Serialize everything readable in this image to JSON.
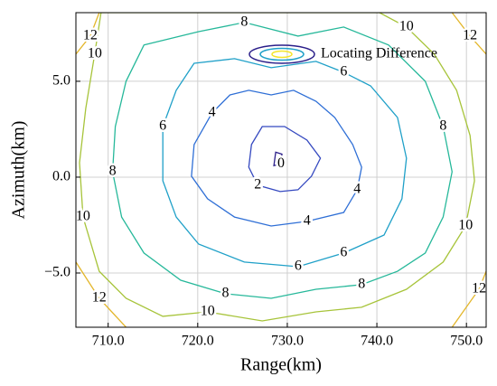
{
  "chart_data": {
    "type": "contour",
    "xlabel": "Range(km)",
    "ylabel": "Azimuth(km)",
    "legend_label": "Locating Difference",
    "xlim": [
      706.4,
      752.2
    ],
    "ylim": [
      -7.83,
      8.58
    ],
    "xticks": [
      {
        "value": 710,
        "label": "710.0"
      },
      {
        "value": 720,
        "label": "720.0"
      },
      {
        "value": 730,
        "label": "730.0"
      },
      {
        "value": 740,
        "label": "740.0"
      },
      {
        "value": 750,
        "label": "750.0"
      }
    ],
    "yticks": [
      {
        "value": -5,
        "label": "−5.0"
      },
      {
        "value": 0,
        "label": "0.0"
      },
      {
        "value": 5,
        "label": "5.0"
      }
    ],
    "grid": true,
    "contours": [
      {
        "level": 0,
        "color": "#2b1f8a",
        "x": [
          728.5,
          729.3,
          729.4,
          728.7
        ],
        "y": [
          0.6,
          0.7,
          1.2,
          1.3
        ]
      },
      {
        "level": 2,
        "color": "#3549c0",
        "x": [
          727.2,
          729.7,
          732.2,
          733.7,
          732.7,
          731.2,
          729.2,
          726.7,
          725.7,
          726.0
        ],
        "y": [
          2.64,
          2.64,
          1.93,
          0.99,
          0.05,
          -0.66,
          -0.75,
          -0.42,
          0.52,
          1.7
        ]
      },
      {
        "level": 4,
        "color": "#2f6fd6",
        "x": [
          723.6,
          725.7,
          728.2,
          730.7,
          733.2,
          735.3,
          737.3,
          738.3,
          737.8,
          736.3,
          732.2,
          728.2,
          724.1,
          721.1,
          719.3,
          719.6,
          721.6
        ],
        "y": [
          4.29,
          4.53,
          4.29,
          4.53,
          3.96,
          3.11,
          1.7,
          0.52,
          -0.66,
          -1.84,
          -2.31,
          -2.55,
          -2.08,
          -1.13,
          0.05,
          1.7,
          3.35
        ]
      },
      {
        "level": 6,
        "color": "#1fa0c8",
        "x": [
          719.6,
          724.1,
          728.2,
          733.2,
          736.3,
          739.3,
          742.3,
          743.3,
          742.8,
          740.8,
          736.3,
          731.2,
          725.2,
          720.1,
          717.6,
          716.1,
          716.1,
          717.6
        ],
        "y": [
          5.94,
          6.18,
          5.71,
          6.04,
          5.47,
          4.76,
          3.11,
          0.99,
          -1.13,
          -3.02,
          -3.96,
          -4.67,
          -4.43,
          -3.49,
          -2.08,
          -0.19,
          2.64,
          4.53
        ]
      },
      {
        "level": 8,
        "color": "#26b89a",
        "x": [
          714.0,
          720.1,
          725.2,
          731.2,
          736.3,
          741.3,
          745.4,
          747.4,
          748.4,
          747.4,
          745.4,
          742.3,
          738.3,
          733.2,
          728.2,
          723.1,
          718.1,
          714.0,
          711.5,
          710.5,
          710.8,
          712.0
        ],
        "y": [
          6.89,
          7.59,
          8.07,
          7.36,
          7.83,
          6.89,
          5.0,
          2.64,
          0.28,
          -2.08,
          -3.96,
          -4.91,
          -5.61,
          -5.85,
          -6.32,
          -6.08,
          -5.38,
          -3.96,
          -2.08,
          0.28,
          2.64,
          5.0
        ]
      },
      {
        "level": 10,
        "color": "#a7c43a",
        "x": [
          709.2,
          708.5,
          707.5,
          706.8,
          707.2,
          709.0,
          712.0,
          716.1,
          721.1,
          727.2,
          733.2,
          738.3,
          743.3,
          747.4,
          749.9,
          750.9,
          750.4,
          748.9,
          746.4,
          743.3,
          740.3
        ],
        "y": [
          8.58,
          6.42,
          3.58,
          0.75,
          -2.08,
          -4.91,
          -6.32,
          -7.26,
          -7.03,
          -7.5,
          -7.03,
          -6.79,
          -5.85,
          -4.43,
          -2.55,
          -0.19,
          2.17,
          4.53,
          6.42,
          7.83,
          8.58
        ]
      },
      {
        "level": 12,
        "color": "#e3b62b",
        "x": [
          706.4,
          708.0,
          709.0,
          null,
          706.4,
          709.0,
          712.0,
          null,
          748.4,
          751.4,
          752.2,
          null,
          748.4,
          750.4,
          752.2
        ],
        "y": [
          6.42,
          7.36,
          8.58,
          null,
          -4.43,
          -6.32,
          -7.83,
          null,
          -7.83,
          -5.85,
          -4.91,
          null,
          8.58,
          7.36,
          6.42
        ]
      }
    ]
  }
}
